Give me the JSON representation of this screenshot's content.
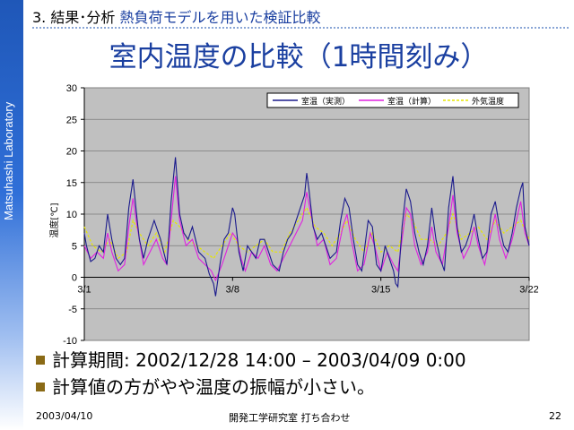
{
  "sidebar": {
    "text": "Matsuhashi Laboratory"
  },
  "header": {
    "section_number": "3.",
    "section_title": "結果･分析",
    "section_subtitle": "熱負荷モデルを用いた検証比較",
    "title": "室内温度の比較（1時間刻み）"
  },
  "chart_data": {
    "type": "line",
    "title": "",
    "xlabel": "",
    "ylabel": "温度[℃]",
    "ylim": [
      -10,
      30
    ],
    "yticks": [
      -10,
      -5,
      0,
      5,
      10,
      15,
      20,
      25,
      30
    ],
    "xlim": [
      0,
      21
    ],
    "xticks": [
      {
        "label": "3/1",
        "day": 0
      },
      {
        "label": "3/8",
        "day": 7
      },
      {
        "label": "3/15",
        "day": 14
      },
      {
        "label": "3/22",
        "day": 21
      }
    ],
    "grid": true,
    "legend_position": "top-right",
    "colors": {
      "plot_bg": "#c0c0c0",
      "grid": "#7a7a7a"
    },
    "series": [
      {
        "name": "室温（実測）",
        "color": "#1a1a8c",
        "values": [
          [
            0,
            7
          ],
          [
            0.1,
            5
          ],
          [
            0.3,
            2.5
          ],
          [
            0.5,
            3
          ],
          [
            0.7,
            5
          ],
          [
            0.9,
            4
          ],
          [
            1.1,
            10
          ],
          [
            1.3,
            6
          ],
          [
            1.5,
            3
          ],
          [
            1.7,
            2
          ],
          [
            1.9,
            3
          ],
          [
            2.1,
            11
          ],
          [
            2.3,
            15.5
          ],
          [
            2.5,
            9
          ],
          [
            2.6,
            6
          ],
          [
            2.8,
            3
          ],
          [
            3,
            6
          ],
          [
            3.3,
            9
          ],
          [
            3.6,
            6
          ],
          [
            3.9,
            2
          ],
          [
            4.1,
            12
          ],
          [
            4.3,
            19
          ],
          [
            4.5,
            10
          ],
          [
            4.7,
            7
          ],
          [
            4.9,
            6
          ],
          [
            5.1,
            8
          ],
          [
            5.4,
            4
          ],
          [
            5.7,
            3
          ],
          [
            5.9,
            0.5
          ],
          [
            6.1,
            -1
          ],
          [
            6.2,
            -3
          ],
          [
            6.4,
            2
          ],
          [
            6.6,
            6
          ],
          [
            6.8,
            7
          ],
          [
            7,
            11
          ],
          [
            7.1,
            10
          ],
          [
            7.3,
            4
          ],
          [
            7.5,
            1
          ],
          [
            7.7,
            5
          ],
          [
            7.9,
            4
          ],
          [
            8.1,
            3
          ],
          [
            8.3,
            6
          ],
          [
            8.5,
            6
          ],
          [
            8.7,
            4
          ],
          [
            8.9,
            2
          ],
          [
            9.2,
            1
          ],
          [
            9.4,
            4
          ],
          [
            9.6,
            6
          ],
          [
            9.8,
            7
          ],
          [
            10,
            9
          ],
          [
            10.2,
            11
          ],
          [
            10.4,
            13
          ],
          [
            10.5,
            16.5
          ],
          [
            10.6,
            14
          ],
          [
            10.8,
            8
          ],
          [
            11,
            6
          ],
          [
            11.2,
            7
          ],
          [
            11.4,
            5
          ],
          [
            11.6,
            3
          ],
          [
            11.9,
            4
          ],
          [
            12.1,
            9
          ],
          [
            12.3,
            12.5
          ],
          [
            12.5,
            11
          ],
          [
            12.7,
            6
          ],
          [
            12.9,
            2
          ],
          [
            13.1,
            1
          ],
          [
            13.4,
            9
          ],
          [
            13.6,
            8
          ],
          [
            13.8,
            2
          ],
          [
            14,
            1
          ],
          [
            14.2,
            5
          ],
          [
            14.4,
            3
          ],
          [
            14.6,
            1
          ],
          [
            14.7,
            -1
          ],
          [
            14.8,
            -1.5
          ],
          [
            15,
            8
          ],
          [
            15.2,
            14
          ],
          [
            15.4,
            12
          ],
          [
            15.6,
            7
          ],
          [
            15.8,
            4
          ],
          [
            16,
            2
          ],
          [
            16.2,
            5
          ],
          [
            16.4,
            11
          ],
          [
            16.6,
            6
          ],
          [
            16.8,
            3
          ],
          [
            17,
            1
          ],
          [
            17.2,
            11
          ],
          [
            17.4,
            16
          ],
          [
            17.6,
            8
          ],
          [
            17.8,
            4
          ],
          [
            18,
            5
          ],
          [
            18.2,
            7
          ],
          [
            18.4,
            10
          ],
          [
            18.6,
            6
          ],
          [
            18.8,
            3
          ],
          [
            19,
            4
          ],
          [
            19.2,
            10
          ],
          [
            19.4,
            12
          ],
          [
            19.6,
            8
          ],
          [
            19.8,
            5
          ],
          [
            20,
            4
          ],
          [
            20.2,
            7
          ],
          [
            20.4,
            11
          ],
          [
            20.6,
            14
          ],
          [
            20.7,
            15
          ],
          [
            20.8,
            8
          ],
          [
            21,
            5
          ]
        ]
      },
      {
        "name": "室温（計算）",
        "color": "#e020e0",
        "values": [
          [
            0,
            5
          ],
          [
            0.3,
            3
          ],
          [
            0.6,
            4
          ],
          [
            0.9,
            3
          ],
          [
            1.1,
            7
          ],
          [
            1.3,
            4
          ],
          [
            1.6,
            1
          ],
          [
            1.9,
            2
          ],
          [
            2.1,
            8
          ],
          [
            2.3,
            12.5
          ],
          [
            2.5,
            8
          ],
          [
            2.8,
            2
          ],
          [
            3.1,
            4
          ],
          [
            3.4,
            6
          ],
          [
            3.7,
            3
          ],
          [
            3.9,
            2
          ],
          [
            4.1,
            9
          ],
          [
            4.3,
            16
          ],
          [
            4.5,
            9
          ],
          [
            4.8,
            5
          ],
          [
            5.1,
            6
          ],
          [
            5.4,
            3
          ],
          [
            5.7,
            2
          ],
          [
            6,
            1
          ],
          [
            6.2,
            -0.5
          ],
          [
            6.5,
            2
          ],
          [
            6.8,
            5
          ],
          [
            7,
            7
          ],
          [
            7.2,
            6
          ],
          [
            7.4,
            3
          ],
          [
            7.6,
            1
          ],
          [
            7.9,
            4
          ],
          [
            8.2,
            3
          ],
          [
            8.5,
            5
          ],
          [
            8.8,
            2
          ],
          [
            9.1,
            1
          ],
          [
            9.4,
            3
          ],
          [
            9.7,
            5
          ],
          [
            10,
            7
          ],
          [
            10.3,
            9
          ],
          [
            10.5,
            13.5
          ],
          [
            10.7,
            10
          ],
          [
            11,
            5
          ],
          [
            11.3,
            6
          ],
          [
            11.6,
            2
          ],
          [
            11.9,
            3
          ],
          [
            12.2,
            8
          ],
          [
            12.4,
            10
          ],
          [
            12.6,
            6
          ],
          [
            12.9,
            1
          ],
          [
            13.2,
            2
          ],
          [
            13.5,
            7
          ],
          [
            13.7,
            5
          ],
          [
            14,
            1
          ],
          [
            14.3,
            4
          ],
          [
            14.6,
            2
          ],
          [
            14.8,
            1
          ],
          [
            15,
            6
          ],
          [
            15.2,
            11
          ],
          [
            15.4,
            10
          ],
          [
            15.6,
            5
          ],
          [
            15.9,
            2
          ],
          [
            16.2,
            4
          ],
          [
            16.4,
            8
          ],
          [
            16.6,
            4
          ],
          [
            16.9,
            2
          ],
          [
            17.2,
            8
          ],
          [
            17.4,
            13
          ],
          [
            17.6,
            7
          ],
          [
            17.9,
            3
          ],
          [
            18.2,
            5
          ],
          [
            18.4,
            8
          ],
          [
            18.6,
            5
          ],
          [
            18.9,
            2
          ],
          [
            19.2,
            7
          ],
          [
            19.4,
            10
          ],
          [
            19.6,
            6
          ],
          [
            19.9,
            3
          ],
          [
            20.2,
            6
          ],
          [
            20.4,
            9
          ],
          [
            20.6,
            12
          ],
          [
            20.8,
            7
          ],
          [
            21,
            5
          ]
        ]
      },
      {
        "name": "外気温度",
        "color": "#e6e600",
        "values": [
          [
            0,
            8
          ],
          [
            0.4,
            5
          ],
          [
            0.8,
            4
          ],
          [
            1.2,
            6
          ],
          [
            1.6,
            3
          ],
          [
            2,
            4
          ],
          [
            2.3,
            9
          ],
          [
            2.6,
            7
          ],
          [
            3,
            5
          ],
          [
            3.4,
            7
          ],
          [
            3.8,
            4
          ],
          [
            4.2,
            9
          ],
          [
            4.5,
            8
          ],
          [
            4.9,
            6
          ],
          [
            5.3,
            5
          ],
          [
            5.7,
            4
          ],
          [
            6.1,
            3
          ],
          [
            6.5,
            5
          ],
          [
            6.9,
            7
          ],
          [
            7.3,
            5
          ],
          [
            7.7,
            4
          ],
          [
            8.1,
            5
          ],
          [
            8.5,
            6
          ],
          [
            8.9,
            4
          ],
          [
            9.3,
            4
          ],
          [
            9.7,
            7
          ],
          [
            10.1,
            9
          ],
          [
            10.5,
            11
          ],
          [
            10.9,
            8
          ],
          [
            11.3,
            7
          ],
          [
            11.7,
            5
          ],
          [
            12.1,
            7
          ],
          [
            12.4,
            9
          ],
          [
            12.8,
            6
          ],
          [
            13.2,
            4
          ],
          [
            13.6,
            7
          ],
          [
            14,
            4
          ],
          [
            14.4,
            5
          ],
          [
            14.8,
            4
          ],
          [
            15.2,
            10
          ],
          [
            15.5,
            9
          ],
          [
            15.9,
            6
          ],
          [
            16.3,
            6
          ],
          [
            16.7,
            5
          ],
          [
            17.1,
            7
          ],
          [
            17.4,
            10
          ],
          [
            17.8,
            6
          ],
          [
            18.2,
            7
          ],
          [
            18.6,
            8
          ],
          [
            19,
            6
          ],
          [
            19.4,
            9
          ],
          [
            19.8,
            7
          ],
          [
            20.2,
            8
          ],
          [
            20.6,
            9
          ],
          [
            21,
            6
          ]
        ]
      }
    ]
  },
  "bullets": [
    "計算期間: 2002/12/28 14:00 – 2003/04/09 0:00",
    "計算値の方がやや温度の振幅が小さい。"
  ],
  "footer": {
    "date": "2003/04/10",
    "org": "開発工学研究室 打ち合わせ",
    "page": "22"
  }
}
